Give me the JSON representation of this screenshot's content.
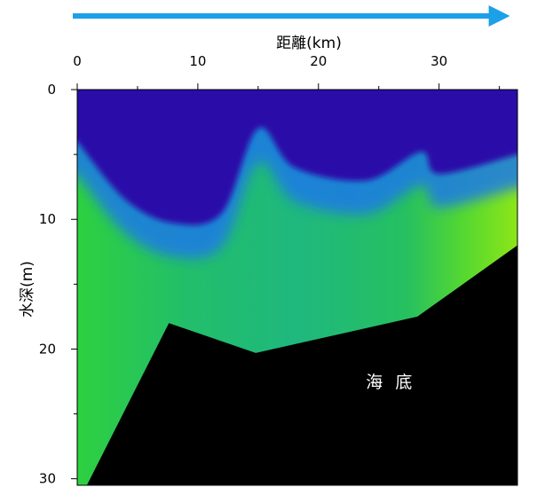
{
  "chart_data": {
    "type": "heatmap",
    "title": "",
    "xlabel": "距離(km)",
    "ylabel": "水深(m)",
    "xlim": [
      0,
      36.5
    ],
    "ylim": [
      0,
      30.5
    ],
    "y_reversed": true,
    "x_axis_position": "top",
    "x_ticks": [
      0,
      10,
      20,
      30
    ],
    "x_tick_labels": [
      "0",
      "10",
      "20",
      "30"
    ],
    "y_ticks": [
      0,
      10,
      20,
      30
    ],
    "y_tick_labels": [
      "0",
      "10",
      "20",
      "30"
    ],
    "x_minor_ticks": [
      5,
      15,
      25,
      35
    ],
    "y_minor_ticks": [
      5,
      15,
      25
    ],
    "grid": false,
    "legend": false,
    "direction_arrow": "left-to-right",
    "colors": {
      "deep_blue": "#2a10a8",
      "blue": "#1e64f0",
      "cyan": "#14a8d8",
      "teal": "#1fb882",
      "green": "#28cc50",
      "lime": "#5cdc2a",
      "yellow_green": "#8ce618",
      "seabed": "#000000",
      "arrow": "#1ca0e8"
    },
    "upper_layer_bottom_profile": [
      {
        "x": 0,
        "y": 4
      },
      {
        "x": 4,
        "y": 8.5
      },
      {
        "x": 8,
        "y": 10.3
      },
      {
        "x": 12,
        "y": 9.5
      },
      {
        "x": 15,
        "y": 3
      },
      {
        "x": 18,
        "y": 6
      },
      {
        "x": 24,
        "y": 7
      },
      {
        "x": 28.5,
        "y": 4.8
      },
      {
        "x": 30,
        "y": 6.5
      },
      {
        "x": 36.5,
        "y": 5
      }
    ],
    "seabed_profile": [
      {
        "x": 0.8,
        "y": 30.5
      },
      {
        "x": 7.6,
        "y": 18
      },
      {
        "x": 14.8,
        "y": 20.3
      },
      {
        "x": 28.2,
        "y": 17.5
      },
      {
        "x": 36.5,
        "y": 12
      }
    ],
    "annotations": [
      {
        "text": "海 底",
        "x": 26,
        "y": 22.5
      }
    ]
  }
}
